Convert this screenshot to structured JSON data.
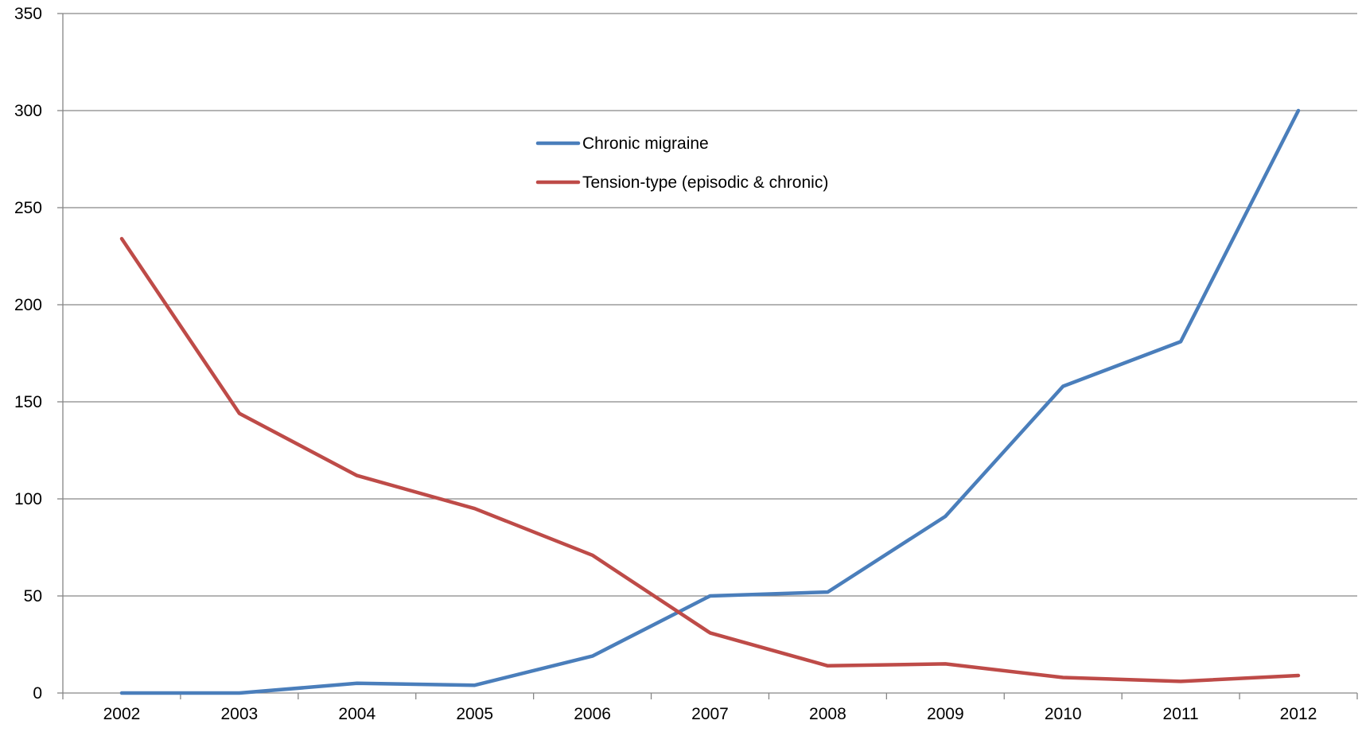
{
  "chart_data": {
    "type": "line",
    "title": "",
    "xlabel": "",
    "ylabel": "",
    "categories": [
      "2002",
      "2003",
      "2004",
      "2005",
      "2006",
      "2007",
      "2008",
      "2009",
      "2010",
      "2011",
      "2012"
    ],
    "ylim": [
      0,
      350
    ],
    "yticks": [
      0,
      50,
      100,
      150,
      200,
      250,
      300,
      350
    ],
    "grid": true,
    "legend_placement": "top-center",
    "series": [
      {
        "name": "Chronic migraine",
        "color": "#4a7ebb",
        "values": [
          0,
          0,
          5,
          4,
          19,
          50,
          52,
          91,
          158,
          181,
          300
        ]
      },
      {
        "name": "Tension-type (episodic & chronic)",
        "color": "#be4b48",
        "values": [
          234,
          144,
          112,
          95,
          71,
          31,
          14,
          15,
          8,
          6,
          9
        ]
      }
    ]
  }
}
